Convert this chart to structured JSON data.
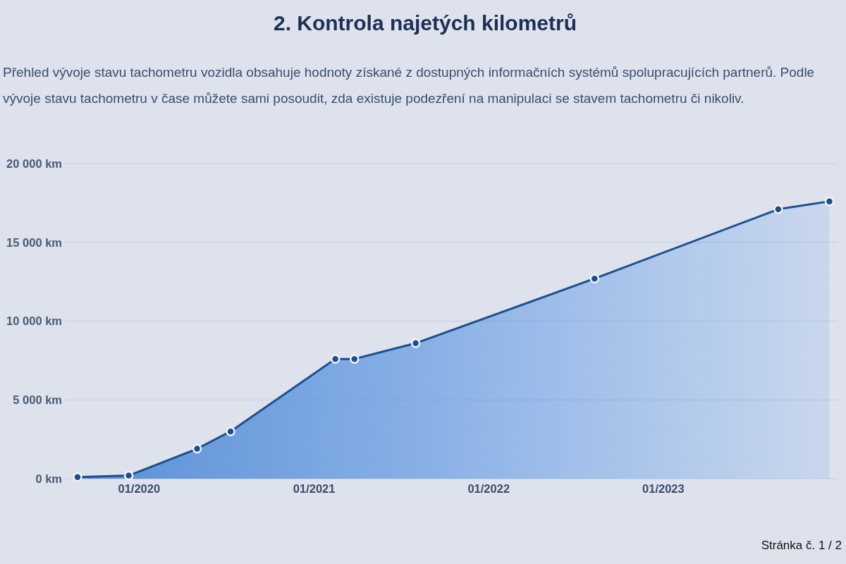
{
  "chart_data": {
    "type": "area",
    "title": "2. Kontrola najetých kilometrů",
    "subtitle": "Přehled vývoje stavu tachometru vozidla obsahuje hodnoty získané z dostupných informačních systémů spolupracujících partnerů. Podle vývoje stavu tachometru v čase můžete sami posoudit, zda existuje podezření na manipulaci se stavem tachometru či nikoliv.",
    "x": [
      "2019-08-26",
      "2019-12-11",
      "2020-05-02",
      "2020-07-11",
      "2021-02-15",
      "2021-03-27",
      "2021-08-02",
      "2022-08-11",
      "2023-08-30",
      "2023-12-15"
    ],
    "series": [
      {
        "color": "#1f4e8c",
        "values": [
          100,
          200,
          1900,
          3000,
          7600,
          7600,
          8600,
          12700,
          17100,
          17600
        ]
      }
    ],
    "xlim": [
      "2019-08-01",
      "2024-01-01"
    ],
    "xticks": [
      {
        "value": "2020-01-01",
        "label": "01/2020"
      },
      {
        "value": "2021-01-01",
        "label": "01/2021"
      },
      {
        "value": "2022-01-01",
        "label": "01/2022"
      },
      {
        "value": "2023-01-01",
        "label": "01/2023"
      }
    ],
    "ylim": [
      0,
      20000
    ],
    "yticks": [
      {
        "value": 0,
        "label": "0 km"
      },
      {
        "value": 5000,
        "label": "5 000 km"
      },
      {
        "value": 10000,
        "label": "10 000 km"
      },
      {
        "value": 15000,
        "label": "15 000 km"
      },
      {
        "value": 20000,
        "label": "20 000 km"
      }
    ],
    "grid": "y",
    "marker": "circle",
    "annotations": [
      "Stránka č. 1 / 2"
    ]
  }
}
